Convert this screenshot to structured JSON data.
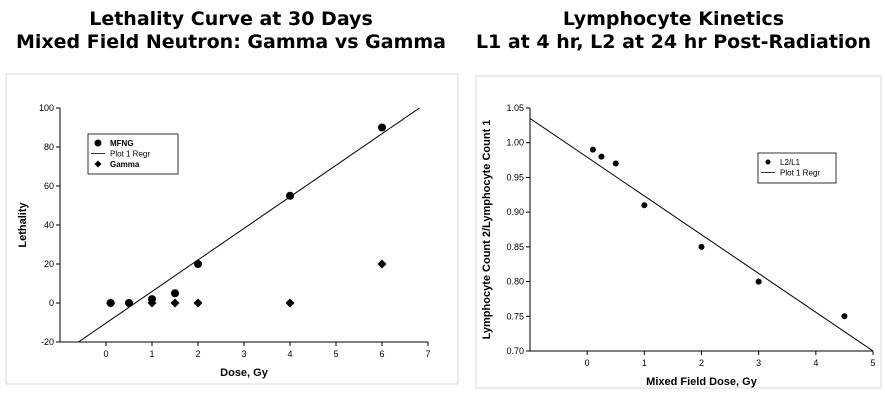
{
  "chart_data": [
    {
      "type": "scatter",
      "title": "Lethality Curve at 30 Days",
      "subtitle": "Mixed Field Neutron: Gamma vs Gamma",
      "xlabel": "Dose, Gy",
      "ylabel": "Lethality",
      "xlim": [
        -1,
        7
      ],
      "ylim": [
        -20,
        100
      ],
      "xticks": [
        0,
        1,
        2,
        3,
        4,
        5,
        6,
        7
      ],
      "yticks": [
        -20,
        0,
        20,
        40,
        60,
        80,
        100
      ],
      "grid": false,
      "legend_position": "top-left",
      "series": [
        {
          "name": "MFNG",
          "marker": "circle",
          "points": [
            [
              0.1,
              0
            ],
            [
              0.5,
              0
            ],
            [
              1,
              2
            ],
            [
              1.5,
              5
            ],
            [
              2,
              20
            ],
            [
              4,
              55
            ],
            [
              6,
              90
            ]
          ]
        },
        {
          "name": "Plot 1 Regr",
          "marker": "line",
          "line": [
            [
              -0.6,
              -20
            ],
            [
              7,
              103
            ]
          ]
        },
        {
          "name": "Gamma",
          "marker": "diamond",
          "points": [
            [
              0.1,
              0
            ],
            [
              1,
              0
            ],
            [
              1.5,
              0
            ],
            [
              2,
              0
            ],
            [
              4,
              0
            ],
            [
              6,
              20
            ]
          ]
        }
      ]
    },
    {
      "type": "scatter",
      "title": "Lymphocyte Kinetics",
      "subtitle": "L1 at 4 hr, L2 at 24 hr Post-Radiation",
      "xlabel": "Mixed Field Dose, Gy",
      "ylabel": "Lymphocyte Count 2/Lymphocyte Count 1",
      "xlim": [
        -1,
        5
      ],
      "ylim": [
        0.7,
        1.05
      ],
      "xticks": [
        0,
        1,
        2,
        3,
        4,
        5
      ],
      "yticks": [
        0.7,
        0.75,
        0.8,
        0.85,
        0.9,
        0.95,
        1.0,
        1.05
      ],
      "grid": false,
      "legend_position": "top-right",
      "series": [
        {
          "name": "L2/L1",
          "marker": "circle",
          "points": [
            [
              0.1,
              0.99
            ],
            [
              0.25,
              0.98
            ],
            [
              0.5,
              0.97
            ],
            [
              1,
              0.91
            ],
            [
              2,
              0.85
            ],
            [
              3,
              0.8
            ],
            [
              4.5,
              0.75
            ]
          ]
        },
        {
          "name": "Plot 1 Regr",
          "marker": "line",
          "line": [
            [
              -1,
              1.035
            ],
            [
              5,
              0.7
            ]
          ]
        }
      ]
    }
  ]
}
